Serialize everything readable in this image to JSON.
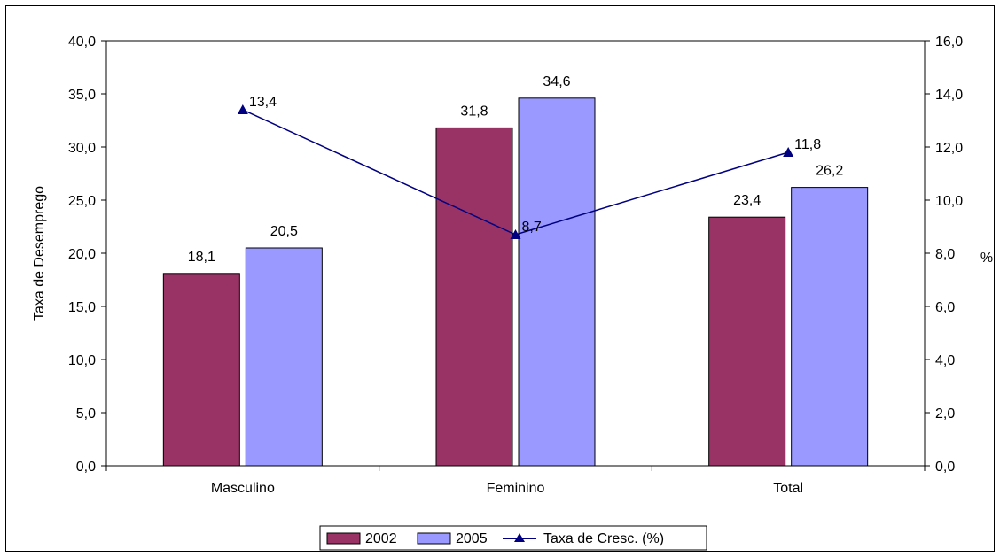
{
  "chart_data": {
    "type": "bar",
    "categories": [
      "Masculino",
      "Feminino",
      "Total"
    ],
    "series": [
      {
        "name": "2002",
        "values": [
          18.1,
          31.8,
          23.4
        ],
        "color": "#993366",
        "axis": "left",
        "labels": [
          "18,1",
          "31,8",
          "23,4"
        ]
      },
      {
        "name": "2005",
        "values": [
          20.5,
          34.6,
          26.2
        ],
        "color": "#9999ff",
        "axis": "left",
        "labels": [
          "20,5",
          "34,6",
          "26,2"
        ]
      }
    ],
    "line_series": {
      "name": "Taxa de Cresc. (%)",
      "type": "line",
      "values": [
        13.4,
        8.7,
        11.8
      ],
      "labels": [
        "13,4",
        "8,7",
        "11,8"
      ],
      "color": "#000080",
      "marker": "triangle",
      "axis": "right"
    },
    "ylabel": "Taxa de Desemprego",
    "ylabel_right": "%",
    "ylim": [
      0,
      40
    ],
    "ylim_right": [
      0,
      16
    ],
    "yticks": [
      "0,0",
      "5,0",
      "10,0",
      "15,0",
      "20,0",
      "25,0",
      "30,0",
      "35,0",
      "40,0"
    ],
    "yticks_right": [
      "0,0",
      "2,0",
      "4,0",
      "6,0",
      "8,0",
      "10,0",
      "12,0",
      "14,0",
      "16,0"
    ],
    "grid": false,
    "legend_position": "bottom"
  }
}
